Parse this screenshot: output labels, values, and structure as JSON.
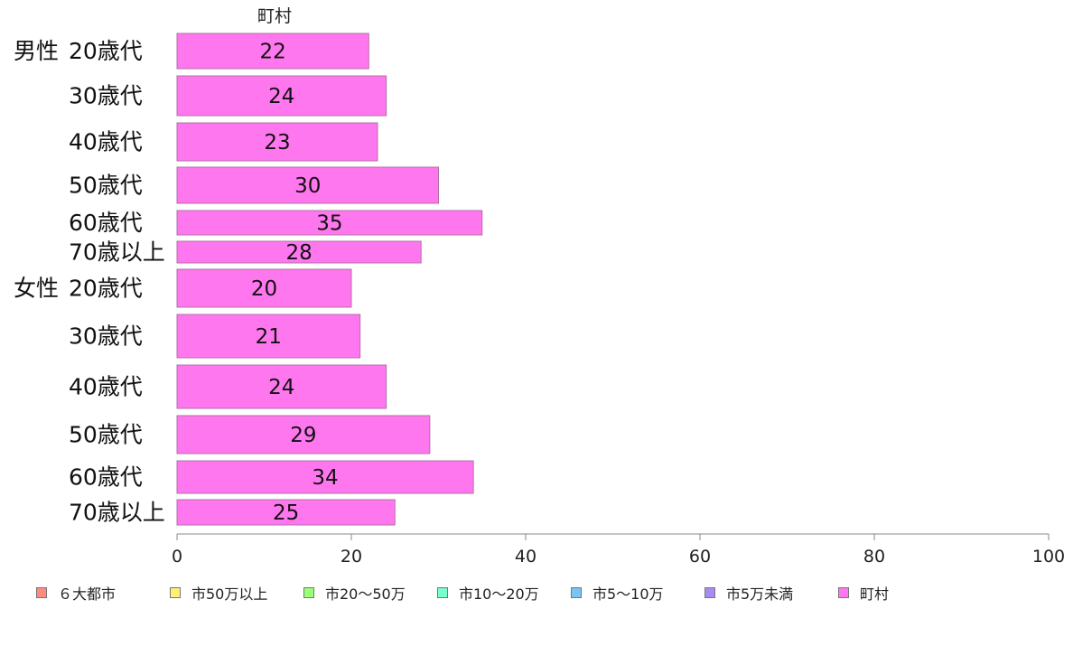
{
  "chart_data": {
    "type": "bar",
    "orientation": "horizontal",
    "panel_title": "町村",
    "groups": [
      {
        "label": "男性",
        "categories": [
          "20歳代",
          "30歳代",
          "40歳代",
          "50歳代",
          "60歳代",
          "70歳以上"
        ],
        "values": [
          22,
          24,
          23,
          30,
          35,
          28
        ]
      },
      {
        "label": "女性",
        "categories": [
          "20歳代",
          "30歳代",
          "40歳代",
          "50歳代",
          "60歳代",
          "70歳以上"
        ],
        "values": [
          20,
          21,
          24,
          29,
          34,
          25
        ]
      }
    ],
    "xlim": [
      0,
      100
    ],
    "xticks": [
      "0",
      "20",
      "40",
      "60",
      "80",
      "100"
    ],
    "series_color": "#ff77ee",
    "legend": [
      {
        "label": "６大都市",
        "color": "#ff8a80"
      },
      {
        "label": "市50万以上",
        "color": "#ffee77"
      },
      {
        "label": "市20〜50万",
        "color": "#99ff77"
      },
      {
        "label": "市10〜20万",
        "color": "#77ffcc"
      },
      {
        "label": "市5〜10万",
        "color": "#77c4f5"
      },
      {
        "label": "市5万未満",
        "color": "#a98af5"
      },
      {
        "label": "町村",
        "color": "#ff77ee"
      }
    ],
    "legend_position": "bottom",
    "grid": false
  }
}
